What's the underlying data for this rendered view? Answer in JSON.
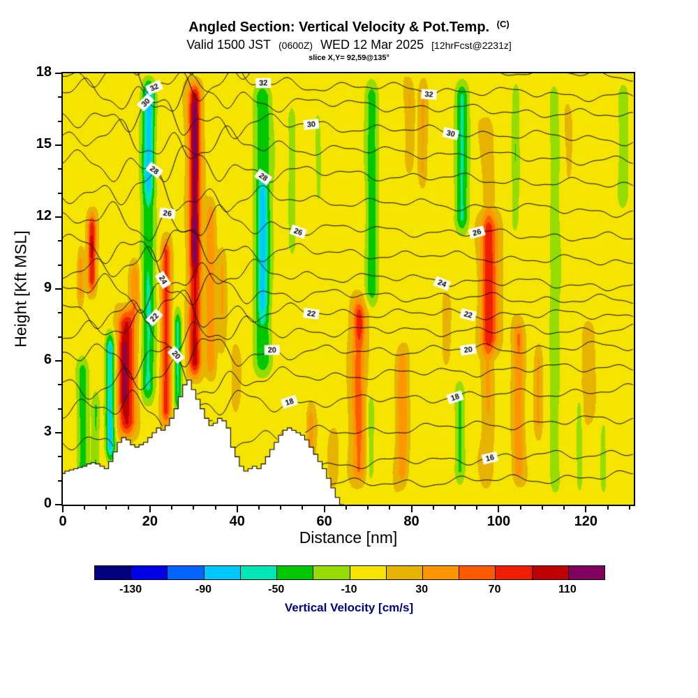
{
  "header": {
    "title_main": "Angled Section: Vertical Velocity & Pot.Temp.",
    "title_unit": "(C)",
    "valid_part1": "Valid 1500 JST",
    "valid_zulu": "(0600Z)",
    "valid_part2": "WED 12 Mar 2025",
    "valid_fcst": "[12hrFcst@2231z]",
    "slice_line": "slice X,Y= 92,59@135°"
  },
  "chart_data": {
    "type": "heatmap",
    "title": "Angled Section: Vertical Velocity & Pot.Temp. (C)",
    "subtitle": "Valid 1500 JST (0600Z) WED 12 Mar 2025 [12hrFcst@2231z]",
    "slice": "slice X,Y= 92,59@135°",
    "xlabel": "Distance [nm]",
    "ylabel": "Height [Kft MSL]",
    "xlim": [
      0,
      131
    ],
    "ylim": [
      0,
      18
    ],
    "x_ticks": [
      0,
      20,
      40,
      60,
      80,
      100,
      120
    ],
    "x_minor_step": 5,
    "y_ticks": [
      0,
      3,
      6,
      9,
      12,
      15,
      18
    ],
    "y_minor_step": 1,
    "background_value": 3,
    "colorbar": {
      "label": "Vertical Velocity [cm/s]",
      "label_color": "#00008b",
      "ticks": [
        -130,
        -90,
        -50,
        -10,
        30,
        70,
        110
      ],
      "levels": [
        -150,
        -130,
        -110,
        -90,
        -70,
        -50,
        -30,
        -10,
        10,
        30,
        50,
        70,
        90,
        110,
        130
      ],
      "colors": [
        "#000080",
        "#0000e6",
        "#0064ff",
        "#00c8ff",
        "#00e6b4",
        "#00c800",
        "#96dc00",
        "#f5e400",
        "#e6b400",
        "#ff9600",
        "#ff5a00",
        "#f01e00",
        "#be0000",
        "#800060"
      ]
    },
    "velocity_bands_format": "x_center_nm, half_width_nm, z_bottom_kft, z_top_kft, amplitude_cm_per_s",
    "velocity_bands": [
      [
        4.5,
        1.3,
        0,
        6.5,
        -45
      ],
      [
        7.5,
        0.9,
        0,
        5,
        -35
      ],
      [
        10.8,
        1.1,
        1.5,
        7.5,
        -80
      ],
      [
        19.5,
        1.6,
        4,
        18,
        -55
      ],
      [
        19.8,
        1.2,
        12.5,
        18,
        -30
      ],
      [
        26.3,
        0.9,
        3.5,
        8.5,
        -55
      ],
      [
        45.8,
        2.0,
        5,
        18,
        -50
      ],
      [
        45.8,
        1.2,
        7.5,
        14,
        -30
      ],
      [
        52.5,
        1.0,
        10,
        17,
        -25
      ],
      [
        58.5,
        0.9,
        12,
        17,
        -20
      ],
      [
        70.8,
        1.5,
        8,
        18,
        -45
      ],
      [
        70.5,
        1.0,
        0.5,
        5,
        -25
      ],
      [
        91.5,
        1.6,
        11,
        18,
        -55
      ],
      [
        91.0,
        1.2,
        0.5,
        5.5,
        -35
      ],
      [
        103.8,
        0.9,
        11,
        18,
        -28
      ],
      [
        112.8,
        1.3,
        0,
        18,
        -26
      ],
      [
        118.5,
        0.8,
        0,
        5,
        -20
      ],
      [
        124.0,
        0.8,
        0,
        4,
        -18
      ],
      [
        128.5,
        1.4,
        12,
        18,
        -26
      ],
      [
        6.6,
        1.0,
        8.5,
        12.5,
        85
      ],
      [
        6.6,
        0.55,
        10.2,
        11.3,
        35
      ],
      [
        4.0,
        0.7,
        8,
        11,
        40
      ],
      [
        14.6,
        2.0,
        2.5,
        8.5,
        90
      ],
      [
        13.8,
        1.0,
        3.5,
        7.5,
        30
      ],
      [
        16.5,
        1.2,
        7.5,
        10.5,
        45
      ],
      [
        23.6,
        1.1,
        3,
        11.5,
        75
      ],
      [
        30.2,
        1.5,
        5,
        18,
        90
      ],
      [
        30.2,
        1.0,
        9.5,
        17.5,
        30
      ],
      [
        33.8,
        1.1,
        5,
        13,
        45
      ],
      [
        36.5,
        0.9,
        6,
        11,
        25
      ],
      [
        39.5,
        1.1,
        3.5,
        7,
        22
      ],
      [
        50.5,
        0.9,
        0.5,
        3.5,
        28
      ],
      [
        56.8,
        0.9,
        1,
        4.5,
        38
      ],
      [
        62.0,
        1.0,
        0.5,
        3.5,
        26
      ],
      [
        67.8,
        1.7,
        0.5,
        9,
        55
      ],
      [
        68.0,
        0.9,
        6.5,
        8.5,
        28
      ],
      [
        77.8,
        1.3,
        0.5,
        7,
        40
      ],
      [
        79.5,
        1.0,
        13.5,
        18,
        25
      ],
      [
        82.5,
        1.0,
        13,
        18,
        28
      ],
      [
        88.0,
        0.9,
        5.5,
        9,
        28
      ],
      [
        97.8,
        2.2,
        6,
        12.5,
        60
      ],
      [
        97.5,
        1.3,
        0.5,
        16.5,
        25
      ],
      [
        104.5,
        1.3,
        0.5,
        8,
        45
      ],
      [
        109.0,
        0.9,
        2.5,
        7,
        30
      ],
      [
        116.0,
        0.8,
        13,
        17,
        18
      ],
      [
        120.5,
        1.5,
        3,
        8,
        20
      ]
    ],
    "terrain_profile": {
      "x_start": 0,
      "dx": 1,
      "heights": [
        1.3,
        1.4,
        1.45,
        1.5,
        1.55,
        1.6,
        1.7,
        1.75,
        1.7,
        1.6,
        1.5,
        1.8,
        2.2,
        2.6,
        2.8,
        2.7,
        2.5,
        2.4,
        2.5,
        2.6,
        2.8,
        3.0,
        3.2,
        3.1,
        3.3,
        3.6,
        4.0,
        4.5,
        5.0,
        5.2,
        4.8,
        4.4,
        4.0,
        3.6,
        3.3,
        3.4,
        3.6,
        3.5,
        3.2,
        2.4,
        2.0,
        1.6,
        1.4,
        1.5,
        1.6,
        1.5,
        1.7,
        2.0,
        2.3,
        2.6,
        2.9,
        3.1,
        3.2,
        3.1,
        3.0,
        2.9,
        2.7,
        2.4,
        2.1,
        1.8,
        1.5,
        1.1,
        0.7,
        0.3,
        0.0
      ]
    },
    "isentropes": {
      "units": "C",
      "levels_min": 15,
      "levels_max": 33,
      "interval": 1,
      "label_every": 2,
      "left_heights": [
        0.5,
        1.2,
        2.5,
        3.9,
        5.0,
        6.2,
        7.2,
        8.1,
        9.0,
        9.9,
        10.9,
        11.9,
        13.1,
        14.3,
        15.3,
        16.3,
        17.2,
        17.9,
        18.7
      ],
      "right_heights": [
        1.2,
        2.2,
        3.6,
        4.8,
        5.8,
        6.6,
        7.3,
        7.9,
        8.5,
        9.1,
        10.1,
        11.1,
        12.2,
        13.3,
        14.3,
        15.2,
        16.2,
        17.0,
        17.9
      ],
      "wave": {
        "amp_base": 0.25,
        "amp_mtn": 0.85,
        "mtn_center": 24,
        "mtn_sigma": 15
      },
      "labels": [
        {
          "level": 16,
          "x": [
            98
          ]
        },
        {
          "level": 18,
          "x": [
            52,
            90
          ]
        },
        {
          "level": 20,
          "x": [
            26,
            48,
            93
          ]
        },
        {
          "level": 22,
          "x": [
            21,
            57,
            93
          ]
        },
        {
          "level": 24,
          "x": [
            23,
            87
          ]
        },
        {
          "level": 26,
          "x": [
            24,
            54,
            95
          ]
        },
        {
          "level": 28,
          "x": [
            21,
            46
          ]
        },
        {
          "level": 30,
          "x": [
            19,
            57,
            89
          ]
        },
        {
          "level": 32,
          "x": [
            21,
            46,
            84
          ]
        }
      ]
    }
  }
}
